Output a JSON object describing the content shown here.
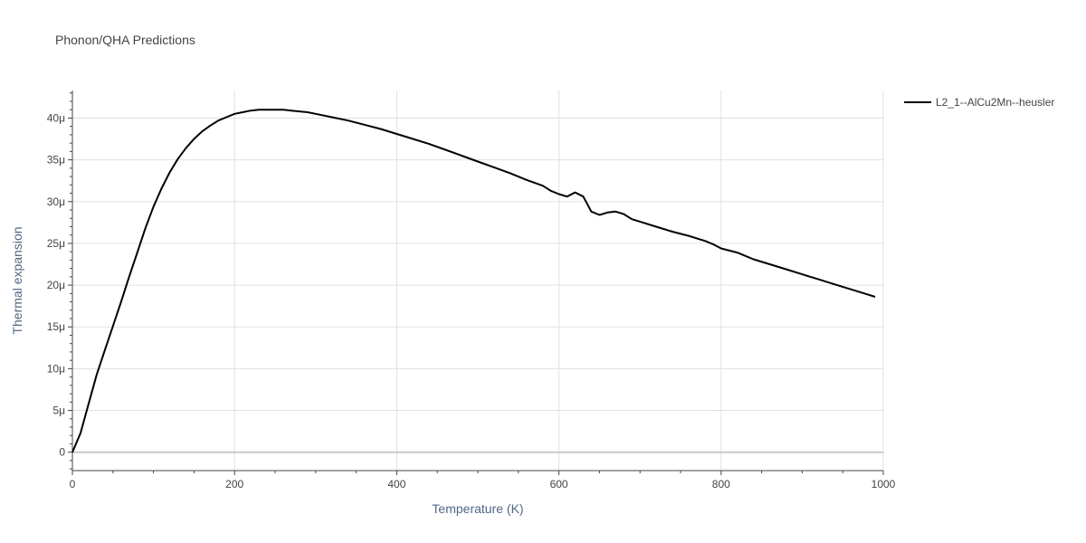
{
  "chart_data": {
    "type": "line",
    "title": "Phonon/QHA Predictions",
    "xlabel": "Temperature (K)",
    "ylabel": "Thermal expansion",
    "xlim": [
      0,
      1000
    ],
    "ylim": [
      -2.2e-06,
      4.33e-05
    ],
    "x_ticks": [
      {
        "value": 0,
        "label": "0"
      },
      {
        "value": 200,
        "label": "200"
      },
      {
        "value": 400,
        "label": "400"
      },
      {
        "value": 600,
        "label": "600"
      },
      {
        "value": 800,
        "label": "800"
      },
      {
        "value": 1000,
        "label": "1000"
      }
    ],
    "y_ticks": [
      {
        "value": 0,
        "label": "0"
      },
      {
        "value": 5e-06,
        "label": "5μ"
      },
      {
        "value": 1e-05,
        "label": "10μ"
      },
      {
        "value": 1.5e-05,
        "label": "15μ"
      },
      {
        "value": 2e-05,
        "label": "20μ"
      },
      {
        "value": 2.5e-05,
        "label": "25μ"
      },
      {
        "value": 3e-05,
        "label": "30μ"
      },
      {
        "value": 3.5e-05,
        "label": "35μ"
      },
      {
        "value": 4e-05,
        "label": "40μ"
      }
    ],
    "grid": true,
    "legend_position": "top-right",
    "series": [
      {
        "name": "L2_1--AlCu2Mn--heusler",
        "color": "#000000",
        "x": [
          0,
          10,
          20,
          30,
          40,
          50,
          60,
          70,
          80,
          90,
          100,
          110,
          120,
          130,
          140,
          150,
          160,
          170,
          180,
          190,
          200,
          210,
          220,
          230,
          240,
          250,
          260,
          270,
          280,
          290,
          300,
          320,
          340,
          360,
          380,
          400,
          420,
          440,
          460,
          480,
          500,
          520,
          540,
          560,
          580,
          590,
          600,
          610,
          620,
          630,
          640,
          650,
          660,
          670,
          680,
          690,
          700,
          720,
          740,
          760,
          780,
          790,
          800,
          820,
          840,
          860,
          880,
          900,
          920,
          940,
          960,
          980,
          990
        ],
        "y": [
          0,
          2.3e-06,
          5.8e-06,
          9.3e-06,
          1.22e-05,
          1.51e-05,
          1.8e-05,
          2.1e-05,
          2.39e-05,
          2.68e-05,
          2.94e-05,
          3.16e-05,
          3.35e-05,
          3.51e-05,
          3.64e-05,
          3.75e-05,
          3.84e-05,
          3.91e-05,
          3.97e-05,
          4.01e-05,
          4.05e-05,
          4.07e-05,
          4.09e-05,
          4.1e-05,
          4.1e-05,
          4.1e-05,
          4.1e-05,
          4.09e-05,
          4.08e-05,
          4.07e-05,
          4.05e-05,
          4.01e-05,
          3.97e-05,
          3.92e-05,
          3.87e-05,
          3.81e-05,
          3.75e-05,
          3.69e-05,
          3.62e-05,
          3.55e-05,
          3.48e-05,
          3.41e-05,
          3.34e-05,
          3.26e-05,
          3.19e-05,
          3.13e-05,
          3.09e-05,
          3.06e-05,
          3.11e-05,
          3.06e-05,
          2.88e-05,
          2.84e-05,
          2.87e-05,
          2.88e-05,
          2.85e-05,
          2.79e-05,
          2.76e-05,
          2.7e-05,
          2.64e-05,
          2.59e-05,
          2.53e-05,
          2.49e-05,
          2.44e-05,
          2.39e-05,
          2.31e-05,
          2.25e-05,
          2.19e-05,
          2.13e-05,
          2.07e-05,
          2.01e-05,
          1.95e-05,
          1.89e-05,
          1.86e-05
        ]
      }
    ]
  }
}
